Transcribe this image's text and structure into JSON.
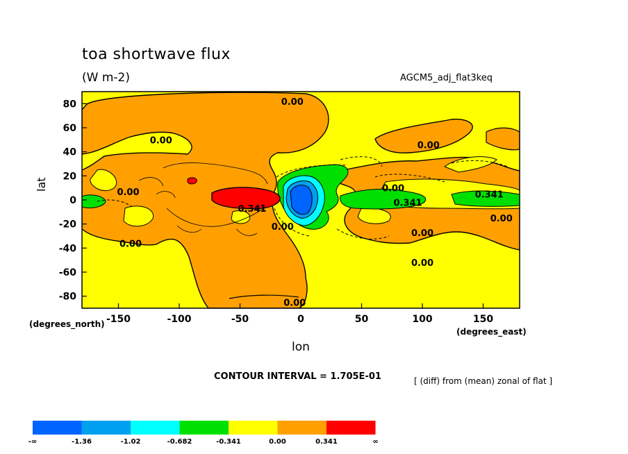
{
  "chart_data": {
    "type": "heatmap",
    "title": "toa shortwave flux",
    "units": "(W m-2)",
    "run_name": "AGCM5_adj_flat3keq",
    "xlabel": "lon",
    "ylabel": "lat",
    "x_units": "(degrees_east)",
    "y_units": "(degrees_north)",
    "xlim": [
      -180,
      180
    ],
    "ylim": [
      -90,
      90
    ],
    "x_ticks": [
      -150,
      -100,
      -50,
      0,
      50,
      100,
      150
    ],
    "y_ticks": [
      80,
      60,
      40,
      20,
      0,
      -20,
      -40,
      -60,
      -80
    ],
    "contour_interval": "CONTOUR INTERVAL = 1.705E-01",
    "note": "[ (diff) from (mean) zonal of flat ]",
    "contour_labels": [
      {
        "text": "0.00",
        "lon": -7,
        "lat": 82
      },
      {
        "text": "0.00",
        "lon": -115,
        "lat": 50
      },
      {
        "text": "0.00",
        "lon": 105,
        "lat": 46
      },
      {
        "text": "0.00",
        "lon": 76,
        "lat": 10
      },
      {
        "text": "0.00",
        "lon": -142,
        "lat": 7
      },
      {
        "text": "0.341",
        "lon": 88,
        "lat": -2
      },
      {
        "text": "0.341",
        "lon": 155,
        "lat": 5
      },
      {
        "text": "0.341",
        "lon": -40,
        "lat": -7
      },
      {
        "text": "0.00",
        "lon": -15,
        "lat": -22
      },
      {
        "text": "0.00",
        "lon": 100,
        "lat": -27
      },
      {
        "text": "0.00",
        "lon": 165,
        "lat": -15
      },
      {
        "text": "0.00",
        "lon": -140,
        "lat": -36
      },
      {
        "text": "0.00",
        "lon": 100,
        "lat": -52
      },
      {
        "text": "0.00",
        "lon": -5,
        "lat": -85
      }
    ],
    "colorbar": {
      "colors": [
        "#0064ff",
        "#00a0f0",
        "#00ffff",
        "#00e000",
        "#ffff00",
        "#ffa000",
        "#ff0000"
      ],
      "labels": [
        "-∞",
        "-1.36",
        "-1.02",
        "-0.682",
        "-0.341",
        "0.00",
        "0.341",
        "∞"
      ]
    },
    "background_color": "#ffff00",
    "grid": false
  }
}
